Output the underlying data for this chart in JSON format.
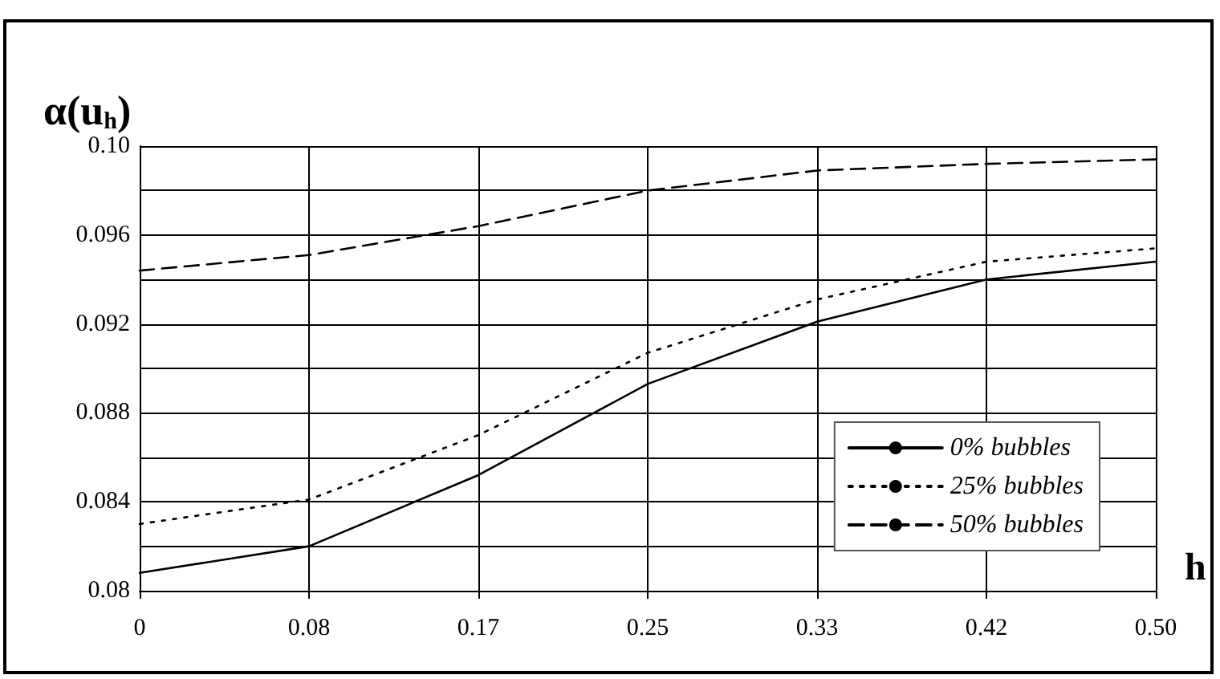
{
  "chart_data": {
    "type": "line",
    "ylabel": "α(u$_{h}$)",
    "xlabel": "h",
    "categories": [
      "0",
      "0.08",
      "0.17",
      "0.25",
      "0.33",
      "0.42",
      "0.50"
    ],
    "series": [
      {
        "name": "0% bubbles",
        "color": "#000000",
        "line_style": "solid",
        "values": [
          0.0808,
          0.082,
          0.0852,
          0.0893,
          0.0921,
          0.094,
          0.0948
        ]
      },
      {
        "name": "25% bubbles",
        "color": "#000000",
        "line_style": "dotted",
        "values": [
          0.083,
          0.0841,
          0.087,
          0.0907,
          0.0931,
          0.0948,
          0.0954
        ]
      },
      {
        "name": "50% bubbles",
        "color": "#000000",
        "line_style": "dashed",
        "values": [
          0.0944,
          0.0951,
          0.0964,
          0.098,
          0.0989,
          0.0992,
          0.0994
        ]
      }
    ],
    "ylim": [
      0.08,
      0.1
    ],
    "yticks": [
      0.08,
      {
        "value": 0.082,
        "label": null
      },
      0.084,
      {
        "value": 0.086,
        "label": null
      },
      0.088,
      {
        "value": 0.09,
        "label": null
      },
      0.092,
      {
        "value": 0.094,
        "label": null
      },
      0.096,
      {
        "value": 0.098,
        "label": null
      },
      {
        "value": 0.1,
        "label": "0.10"
      }
    ],
    "grid": true,
    "legend": "bottom right",
    "marker": "none"
  }
}
